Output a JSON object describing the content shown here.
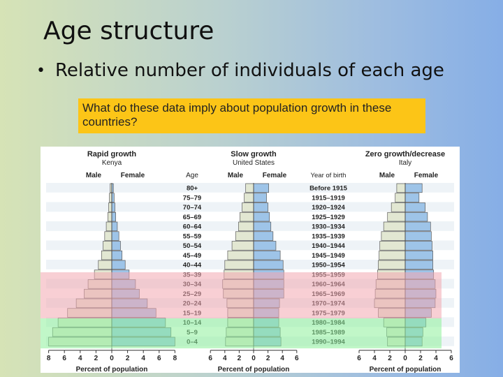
{
  "slide": {
    "title": "Age structure",
    "bullet": "Relative number of individuals of each age",
    "question": "What do these data imply about population growth in these countries?"
  },
  "colors": {
    "male": "#e2e7d2",
    "female": "#9ec4e8",
    "prereproductive_band": "#8ef09a",
    "reproductive_band": "#f2a8b0"
  },
  "chart_data": {
    "type": "bar",
    "orientation": "horizontal population pyramid",
    "age_label": "Age",
    "year_label": "Year of birth",
    "age_groups": [
      "80+",
      "75–79",
      "70–74",
      "65–69",
      "60–64",
      "55–59",
      "50–54",
      "45–49",
      "40–44",
      "35–39",
      "30–34",
      "25–29",
      "20–24",
      "15–19",
      "10–14",
      "5–9",
      "0–4"
    ],
    "birth_years": [
      "Before 1915",
      "1915–1919",
      "1920–1924",
      "1925–1929",
      "1930–1934",
      "1935–1939",
      "1940–1944",
      "1945–1949",
      "1950–1954",
      "1955–1959",
      "1960–1964",
      "1965–1969",
      "1970–1974",
      "1975–1979",
      "1980–1984",
      "1985–1989",
      "1990–1994"
    ],
    "male_label": "Male",
    "female_label": "Female",
    "xlabel": "Percent of population",
    "ylabel": "",
    "pyramids": [
      {
        "title": "Rapid growth",
        "country": "Kenya",
        "xticks": [
          8,
          6,
          4,
          2,
          0,
          2,
          4,
          6,
          8
        ],
        "male": [
          0.2,
          0.3,
          0.4,
          0.5,
          0.7,
          0.9,
          1.1,
          1.3,
          1.7,
          2.2,
          3.0,
          3.5,
          4.5,
          5.6,
          6.8,
          7.5,
          8.0
        ],
        "female": [
          0.2,
          0.3,
          0.4,
          0.5,
          0.7,
          0.9,
          1.1,
          1.3,
          1.7,
          2.2,
          3.0,
          3.5,
          4.5,
          5.6,
          6.8,
          7.5,
          8.0
        ]
      },
      {
        "title": "Slow growth",
        "country": "United States",
        "xticks": [
          6,
          4,
          2,
          0,
          2,
          4,
          6
        ],
        "male": [
          1.1,
          1.3,
          1.6,
          1.9,
          2.1,
          2.5,
          3.0,
          3.6,
          4.0,
          4.1,
          4.3,
          4.2,
          3.7,
          3.6,
          3.6,
          3.8,
          3.9
        ],
        "female": [
          2.1,
          1.8,
          2.0,
          2.2,
          2.4,
          2.7,
          3.1,
          3.7,
          4.1,
          4.2,
          4.2,
          4.2,
          3.6,
          3.5,
          3.5,
          3.7,
          3.8
        ]
      },
      {
        "title": "Zero growth/decrease",
        "country": "Italy",
        "xticks": [
          6,
          4,
          2,
          0,
          2,
          4,
          6
        ],
        "male": [
          1.1,
          1.3,
          1.8,
          2.3,
          2.8,
          3.1,
          3.3,
          3.4,
          3.5,
          3.6,
          3.8,
          3.9,
          4.0,
          3.5,
          2.8,
          2.4,
          2.3
        ],
        "female": [
          2.2,
          1.8,
          2.6,
          2.9,
          3.3,
          3.4,
          3.5,
          3.6,
          3.6,
          3.7,
          3.9,
          4.0,
          3.9,
          3.4,
          2.7,
          2.3,
          2.2
        ]
      }
    ]
  }
}
